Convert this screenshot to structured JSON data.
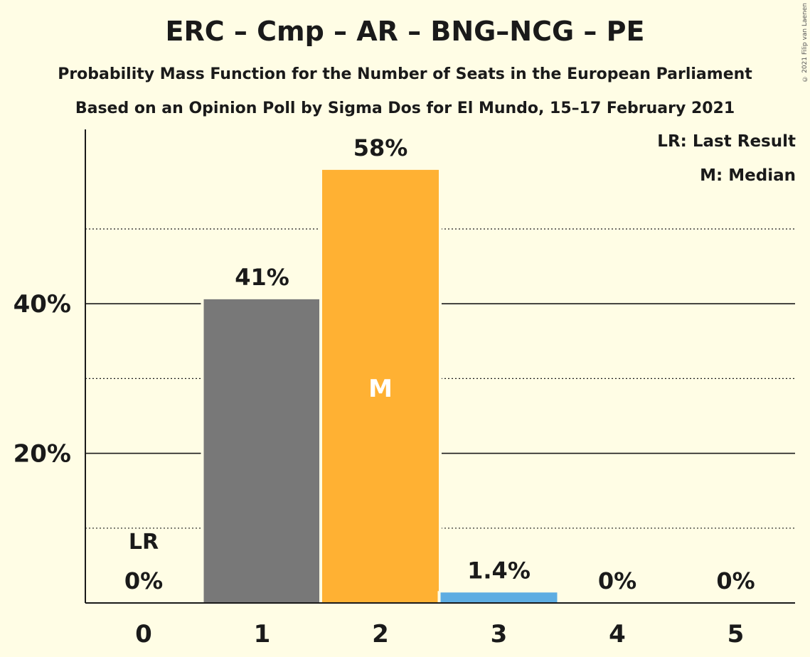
{
  "title": "ERC – Cmp – AR – BNG–NCG – PE",
  "subtitle_1": "Probability Mass Function for the Number of Seats in the European Parliament",
  "subtitle_2": "Based on an Opinion Poll by Sigma Dos for El Mundo, 15–17 February 2021",
  "copyright": "© 2021 Filip van Laenen",
  "legend": {
    "last_result": "LR: Last Result",
    "median": "M: Median"
  },
  "chart_data": {
    "type": "bar",
    "categories": [
      "0",
      "1",
      "2",
      "3",
      "4",
      "5"
    ],
    "values": [
      0,
      40.6,
      57.9,
      1.4,
      0,
      0
    ],
    "value_labels": [
      "0%",
      "41%",
      "58%",
      "1.4%",
      "0%",
      "0%"
    ],
    "bar_colors": [
      "#787878",
      "#787878",
      "#FFB133",
      "#5DADE2",
      "#5DADE2",
      "#5DADE2"
    ],
    "ylim": [
      0,
      62
    ],
    "yticks_major": [
      20,
      40
    ],
    "ytick_labels": [
      "20%",
      "40%"
    ],
    "yticks_minor": [
      10,
      30,
      50
    ],
    "last_result_index": 0,
    "last_result_label": "LR",
    "median_index": 2,
    "median_label": "M",
    "grid": true
  },
  "colors": {
    "background": "#FFFDE5",
    "median_bar": "#FFB133",
    "last_result_bar": "#787878",
    "other_bar": "#5DADE2"
  }
}
